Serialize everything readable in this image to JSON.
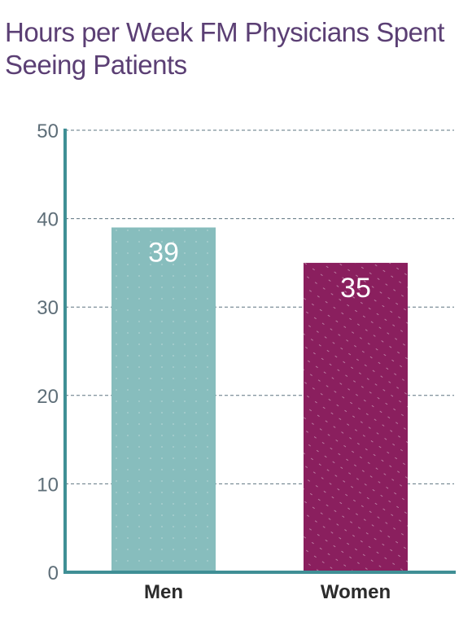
{
  "chart_data": {
    "type": "bar",
    "title": "Hours per Week FM Physicians Spent Seeing Patients",
    "categories": [
      "Men",
      "Women"
    ],
    "values": [
      39,
      35
    ],
    "data_labels": [
      "39",
      "35"
    ],
    "ylim": [
      0,
      50
    ],
    "yticks": [
      0,
      10,
      20,
      30,
      40,
      50
    ],
    "ytick_labels": [
      "0",
      "10",
      "20",
      "30",
      "40",
      "50"
    ],
    "xlabel": "",
    "ylabel": "",
    "grid": true,
    "bar_colors": [
      "#87bdbd",
      "#8a1f5e"
    ],
    "axis_color": "#3f8f95",
    "grid_color": "#5e7480"
  }
}
